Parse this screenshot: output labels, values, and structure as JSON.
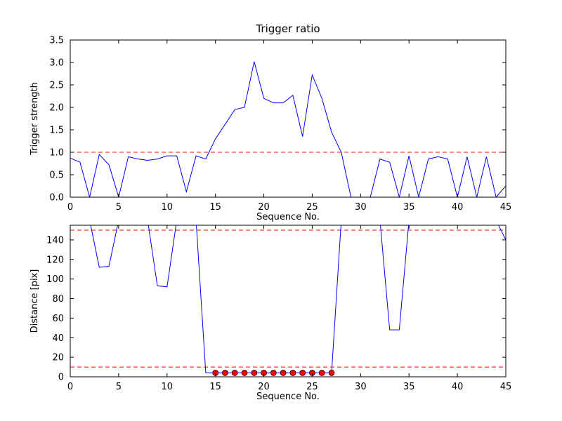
{
  "colors": {
    "line": "#0000ff",
    "threshold": "#ff0000",
    "marker_fill": "#ff0000",
    "marker_edge": "#000000",
    "axes": "#000000",
    "background": "#ffffff"
  },
  "chart_data": [
    {
      "type": "line",
      "name": "trigger-ratio",
      "title": "Trigger ratio",
      "xlabel": "Sequence No.",
      "ylabel": "Trigger strength",
      "xlim": [
        0,
        45
      ],
      "ylim": [
        0,
        3.5
      ],
      "xticks": [
        0,
        5,
        10,
        15,
        20,
        25,
        30,
        35,
        40,
        45
      ],
      "yticks": [
        0,
        0.5,
        1,
        1.5,
        2,
        2.5,
        3,
        3.5
      ],
      "ytick_labels": [
        "0.0",
        "0.5",
        "1.0",
        "1.5",
        "2.0",
        "2.5",
        "3.0",
        "3.5"
      ],
      "thresholds": [
        1.0
      ],
      "grid": false,
      "legend": "none",
      "x": [
        0,
        1,
        2,
        3,
        4,
        5,
        6,
        7,
        8,
        9,
        10,
        11,
        12,
        13,
        14,
        15,
        16,
        17,
        18,
        19,
        20,
        21,
        22,
        23,
        24,
        25,
        26,
        27,
        28,
        29,
        30,
        31,
        32,
        33,
        34,
        35,
        36,
        37,
        38,
        39,
        40,
        41,
        42,
        43,
        44,
        45
      ],
      "y": [
        0.87,
        0.78,
        0,
        0.95,
        0.72,
        0,
        0.9,
        0.85,
        0.82,
        0.85,
        0.92,
        0.92,
        0.12,
        0.92,
        0.85,
        1.3,
        1.62,
        1.95,
        2.0,
        3.02,
        2.2,
        2.1,
        2.1,
        2.27,
        1.35,
        2.72,
        2.2,
        1.45,
        1.0,
        0,
        0,
        0,
        0.85,
        0.78,
        0,
        0.92,
        0,
        0.85,
        0.9,
        0.85,
        0,
        0.9,
        0,
        0.9,
        0,
        0.25
      ]
    },
    {
      "type": "line",
      "name": "distance",
      "title": "",
      "xlabel": "Sequence No.",
      "ylabel": "Distance [pix]",
      "xlim": [
        0,
        45
      ],
      "ylim": [
        0,
        155
      ],
      "xticks": [
        0,
        5,
        10,
        15,
        20,
        25,
        30,
        35,
        40,
        45
      ],
      "yticks": [
        0,
        20,
        40,
        60,
        80,
        100,
        120,
        140
      ],
      "ytick_labels": [
        "0",
        "20",
        "40",
        "60",
        "80",
        "100",
        "120",
        "140"
      ],
      "thresholds": [
        150,
        10
      ],
      "grid": false,
      "legend": "none",
      "x": [
        0,
        1,
        2,
        3,
        4,
        5,
        6,
        7,
        8,
        9,
        10,
        11,
        12,
        13,
        14,
        15,
        16,
        17,
        18,
        19,
        20,
        21,
        22,
        23,
        24,
        25,
        26,
        27,
        28,
        29,
        30,
        31,
        32,
        33,
        34,
        35,
        36,
        37,
        38,
        39,
        40,
        41,
        42,
        43,
        44,
        45
      ],
      "y": [
        160,
        160,
        160,
        112,
        113,
        160,
        160,
        160,
        160,
        93,
        92,
        160,
        160,
        160,
        4,
        4,
        4,
        4,
        4,
        4,
        4,
        4,
        4,
        4,
        4,
        4,
        4,
        4,
        160,
        160,
        160,
        160,
        160,
        48,
        48,
        160,
        160,
        160,
        160,
        160,
        160,
        160,
        160,
        160,
        160,
        140
      ],
      "markers": {
        "x": [
          15,
          16,
          17,
          18,
          19,
          20,
          21,
          22,
          23,
          24,
          25,
          26,
          27
        ],
        "y": 4
      }
    }
  ]
}
